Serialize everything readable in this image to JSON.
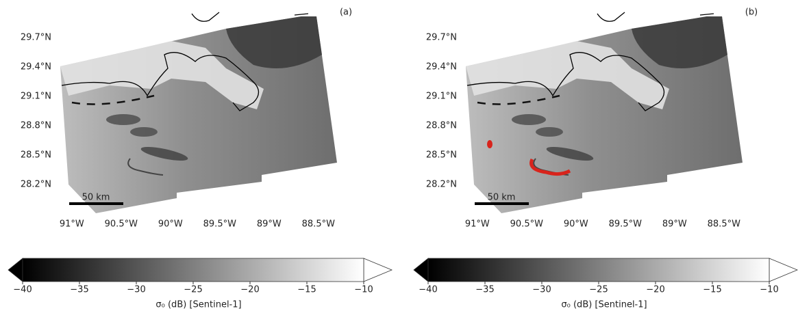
{
  "panels": [
    {
      "label": "(a)",
      "lat_lim": [
        27.95,
        29.95
      ],
      "lon_lim": [
        -91.2,
        -88.2
      ],
      "lat_ticks": [
        {
          "value": 28.2,
          "label": "28.2°N"
        },
        {
          "value": 28.5,
          "label": "28.5°N"
        },
        {
          "value": 28.8,
          "label": "28.8°N"
        },
        {
          "value": 29.1,
          "label": "29.1°N"
        },
        {
          "value": 29.4,
          "label": "29.4°N"
        },
        {
          "value": 29.7,
          "label": "29.7°N"
        }
      ],
      "lon_ticks": [
        {
          "value": -91,
          "label": "91°W"
        },
        {
          "value": -90.5,
          "label": "90.5°W"
        },
        {
          "value": -90,
          "label": "90°W"
        },
        {
          "value": -89.5,
          "label": "89.5°W"
        },
        {
          "value": -89,
          "label": "89°W"
        },
        {
          "value": -88.5,
          "label": "88.5°W"
        }
      ],
      "scale_bar": "50 km",
      "colorbar": {
        "label": "σ₀ (dB) [Sentinel-1]",
        "lim": [
          -40,
          -10
        ],
        "colors": [
          "#000000",
          "#ffffff"
        ],
        "ticks": [
          {
            "value": -40,
            "label": "−40"
          },
          {
            "value": -35,
            "label": "−35"
          },
          {
            "value": -30,
            "label": "−30"
          },
          {
            "value": -25,
            "label": "−25"
          },
          {
            "value": -20,
            "label": "−20"
          },
          {
            "value": -15,
            "label": "−15"
          },
          {
            "value": -10,
            "label": "−10"
          }
        ]
      }
    },
    {
      "label": "(b)",
      "lat_lim": [
        27.95,
        29.95
      ],
      "lon_lim": [
        -91.2,
        -88.2
      ],
      "lat_ticks": [
        {
          "value": 28.2,
          "label": "28.2°N"
        },
        {
          "value": 28.5,
          "label": "28.5°N"
        },
        {
          "value": 28.8,
          "label": "28.8°N"
        },
        {
          "value": 29.1,
          "label": "29.1°N"
        },
        {
          "value": 29.4,
          "label": "29.4°N"
        },
        {
          "value": 29.7,
          "label": "29.7°N"
        }
      ],
      "lon_ticks": [
        {
          "value": -91,
          "label": "91°W"
        },
        {
          "value": -90.5,
          "label": "90.5°W"
        },
        {
          "value": -90,
          "label": "90°W"
        },
        {
          "value": -89.5,
          "label": "89.5°W"
        },
        {
          "value": -89,
          "label": "89°W"
        },
        {
          "value": -88.5,
          "label": "88.5°W"
        }
      ],
      "scale_bar": "50 km",
      "colorbar": {
        "label": "σ₀ (dB) [Sentinel-1]",
        "lim": [
          -40,
          -10
        ],
        "colors": [
          "#000000",
          "#ffffff"
        ],
        "ticks": [
          {
            "value": -40,
            "label": "−40"
          },
          {
            "value": -35,
            "label": "−35"
          },
          {
            "value": -30,
            "label": "−30"
          },
          {
            "value": -25,
            "label": "−25"
          },
          {
            "value": -20,
            "label": "−20"
          },
          {
            "value": -15,
            "label": "−15"
          },
          {
            "value": -10,
            "label": "−10"
          }
        ]
      }
    }
  ]
}
